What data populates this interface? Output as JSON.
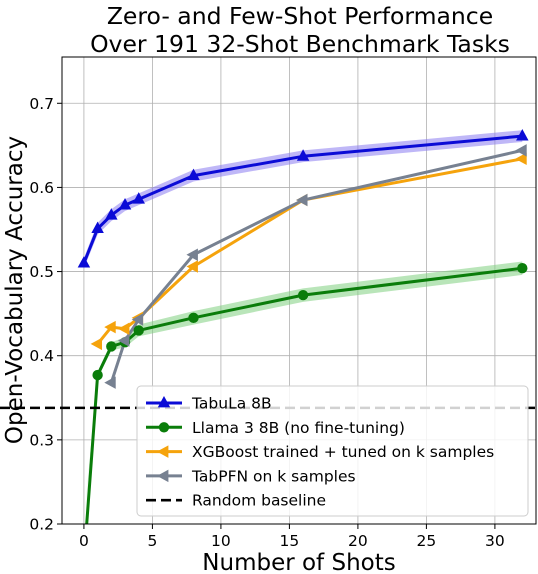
{
  "chart_data": {
    "type": "line",
    "title_lines": [
      "Zero- and Few-Shot Performance",
      "Over 191 32-Shot Benchmark Tasks"
    ],
    "xlabel": "Number of Shots",
    "ylabel": "Open-Vocabulary Accuracy",
    "xlim": [
      -1.6,
      33
    ],
    "ylim": [
      0.2,
      0.755
    ],
    "xticks": [
      0,
      5,
      10,
      15,
      20,
      25,
      30
    ],
    "yticks": [
      0.2,
      0.3,
      0.4,
      0.5,
      0.6,
      0.7
    ],
    "ytick_labels": [
      "0.2",
      "0.3",
      "0.4",
      "0.5",
      "0.6",
      "0.7"
    ],
    "grid": true,
    "legend_position": "lower-right",
    "series": [
      {
        "name": "TabuLa 8B",
        "color": "#0b0bd6",
        "band_color": "#8a7bf0",
        "marker": "triangle-up",
        "x": [
          0,
          1,
          2,
          3,
          4,
          8,
          16,
          32
        ],
        "y": [
          0.51,
          0.551,
          0.567,
          0.579,
          0.586,
          0.614,
          0.637,
          0.661
        ],
        "band": [
          0.006,
          0.007,
          0.007,
          0.007,
          0.007,
          0.007,
          0.007,
          0.007
        ]
      },
      {
        "name": "Llama 3 8B (no fine-tuning)",
        "color": "#0a7d0a",
        "band_color": "#7fcf7f",
        "marker": "circle",
        "x": [
          0,
          1,
          2,
          3,
          4,
          8,
          16,
          32
        ],
        "y": [
          0.155,
          0.377,
          0.411,
          0.416,
          0.43,
          0.445,
          0.472,
          0.504
        ],
        "band": [
          0.003,
          0.004,
          0.005,
          0.006,
          0.007,
          0.008,
          0.008,
          0.008
        ]
      },
      {
        "name": "XGBoost trained + tuned on k samples",
        "color": "#f5a30c",
        "marker": "triangle-left",
        "x": [
          1,
          2,
          3,
          4,
          8,
          16,
          32
        ],
        "y": [
          0.414,
          0.434,
          0.432,
          0.445,
          0.506,
          0.585,
          0.634
        ]
      },
      {
        "name": "TabPFN on k samples",
        "color": "#778191",
        "marker": "triangle-left",
        "x": [
          2,
          3,
          4,
          8,
          16,
          32
        ],
        "y": [
          0.368,
          0.418,
          0.443,
          0.52,
          0.585,
          0.644
        ]
      },
      {
        "name": "Random baseline",
        "color": "#000000",
        "dashed": true,
        "y_const": 0.338
      }
    ]
  }
}
